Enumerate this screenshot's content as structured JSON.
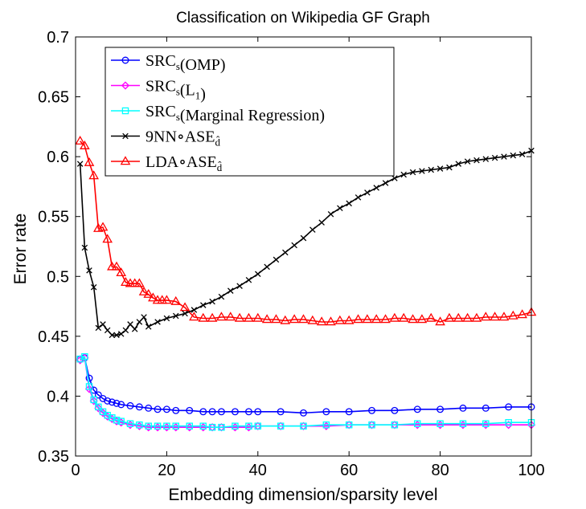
{
  "chart_data": {
    "type": "line",
    "title": "Classification on Wikipedia GF Graph",
    "xlabel": "Embedding dimension/sparsity level",
    "ylabel": "Error rate",
    "xlim": [
      0,
      100
    ],
    "ylim": [
      0.35,
      0.7
    ],
    "xticks": [
      0,
      20,
      40,
      60,
      80,
      100
    ],
    "xtick_labels": [
      "0",
      "20",
      "40",
      "60",
      "80",
      "100"
    ],
    "yticks": [
      0.35,
      0.4,
      0.45,
      0.5,
      0.55,
      0.6,
      0.65,
      0.7
    ],
    "ytick_labels": [
      "0.35",
      "0.4",
      "0.45",
      "0.5",
      "0.55",
      "0.6",
      "0.65",
      "0.7"
    ],
    "grid": false,
    "legend_position": "top-left",
    "series": [
      {
        "name": "SRCs(OMP)",
        "legend_main": "SRC",
        "legend_sub": "s",
        "legend_rest": "(OMP)",
        "color": "#0000ff",
        "marker": "circle",
        "x": [
          1,
          2,
          3,
          4,
          5,
          6,
          7,
          8,
          9,
          10,
          12,
          14,
          16,
          18,
          20,
          22,
          25,
          28,
          30,
          32,
          35,
          38,
          40,
          45,
          50,
          55,
          60,
          65,
          70,
          75,
          80,
          85,
          90,
          95,
          100
        ],
        "y": [
          0.431,
          0.432,
          0.415,
          0.405,
          0.401,
          0.398,
          0.396,
          0.395,
          0.394,
          0.393,
          0.392,
          0.391,
          0.39,
          0.389,
          0.389,
          0.388,
          0.388,
          0.387,
          0.387,
          0.387,
          0.387,
          0.387,
          0.387,
          0.387,
          0.386,
          0.387,
          0.387,
          0.388,
          0.388,
          0.389,
          0.389,
          0.39,
          0.39,
          0.391,
          0.391
        ]
      },
      {
        "name": "SRCs(L1)",
        "legend_main": "SRC",
        "legend_sub": "s",
        "legend_rest": "(L",
        "legend_sub2": "1",
        "legend_end": ")",
        "color": "#ff00ff",
        "marker": "diamond",
        "x": [
          1,
          2,
          3,
          4,
          5,
          6,
          7,
          8,
          9,
          10,
          12,
          14,
          16,
          18,
          20,
          22,
          25,
          28,
          30,
          32,
          35,
          38,
          40,
          45,
          50,
          55,
          60,
          65,
          70,
          75,
          80,
          85,
          90,
          95,
          100
        ],
        "y": [
          0.43,
          0.432,
          0.406,
          0.396,
          0.39,
          0.386,
          0.383,
          0.381,
          0.379,
          0.378,
          0.376,
          0.375,
          0.374,
          0.374,
          0.374,
          0.374,
          0.374,
          0.374,
          0.374,
          0.374,
          0.374,
          0.374,
          0.375,
          0.375,
          0.375,
          0.375,
          0.376,
          0.376,
          0.376,
          0.376,
          0.376,
          0.376,
          0.376,
          0.376,
          0.376
        ]
      },
      {
        "name": "SRCs(Marginal Regression)",
        "legend_main": "SRC",
        "legend_sub": "s",
        "legend_rest": "(Marginal Regression)",
        "color": "#00ffff",
        "marker": "square",
        "x": [
          1,
          2,
          3,
          4,
          5,
          6,
          7,
          8,
          9,
          10,
          12,
          14,
          16,
          18,
          20,
          22,
          25,
          28,
          30,
          32,
          35,
          38,
          40,
          45,
          50,
          55,
          60,
          65,
          70,
          75,
          80,
          85,
          90,
          95,
          100
        ],
        "y": [
          0.431,
          0.433,
          0.408,
          0.397,
          0.391,
          0.387,
          0.384,
          0.382,
          0.38,
          0.379,
          0.377,
          0.376,
          0.375,
          0.375,
          0.375,
          0.375,
          0.375,
          0.375,
          0.374,
          0.374,
          0.375,
          0.375,
          0.375,
          0.375,
          0.375,
          0.376,
          0.376,
          0.376,
          0.376,
          0.377,
          0.377,
          0.377,
          0.377,
          0.378,
          0.378
        ]
      },
      {
        "name": "9NN∘ASE",
        "legend_main": "9NN∘ASE",
        "legend_sub": "d̂",
        "color": "#000000",
        "marker": "x",
        "x": [
          1,
          2,
          3,
          4,
          5,
          6,
          7,
          8,
          9,
          10,
          11,
          12,
          13,
          14,
          15,
          16,
          18,
          20,
          22,
          24,
          26,
          28,
          30,
          32,
          34,
          36,
          38,
          40,
          42,
          44,
          46,
          48,
          50,
          52,
          54,
          56,
          58,
          60,
          62,
          64,
          66,
          68,
          70,
          72,
          74,
          76,
          78,
          80,
          82,
          84,
          86,
          88,
          90,
          92,
          94,
          96,
          98,
          100
        ],
        "y": [
          0.594,
          0.524,
          0.505,
          0.491,
          0.457,
          0.46,
          0.455,
          0.451,
          0.451,
          0.452,
          0.455,
          0.46,
          0.456,
          0.462,
          0.466,
          0.458,
          0.462,
          0.465,
          0.467,
          0.469,
          0.472,
          0.476,
          0.479,
          0.483,
          0.488,
          0.492,
          0.497,
          0.502,
          0.508,
          0.514,
          0.52,
          0.526,
          0.532,
          0.539,
          0.545,
          0.552,
          0.557,
          0.561,
          0.566,
          0.57,
          0.574,
          0.578,
          0.582,
          0.585,
          0.587,
          0.588,
          0.589,
          0.59,
          0.591,
          0.594,
          0.596,
          0.597,
          0.598,
          0.599,
          0.6,
          0.601,
          0.602,
          0.605
        ]
      },
      {
        "name": "LDA∘ASE",
        "legend_main": "LDA∘ASE",
        "legend_sub": "d̂",
        "color": "#ff0000",
        "marker": "triangle",
        "x": [
          1,
          2,
          3,
          4,
          5,
          6,
          7,
          8,
          9,
          10,
          11,
          12,
          13,
          14,
          15,
          16,
          17,
          18,
          19,
          20,
          22,
          24,
          26,
          28,
          30,
          32,
          34,
          36,
          38,
          40,
          42,
          44,
          46,
          48,
          50,
          52,
          54,
          56,
          58,
          60,
          62,
          64,
          66,
          68,
          70,
          72,
          74,
          76,
          78,
          80,
          82,
          84,
          86,
          88,
          90,
          92,
          94,
          96,
          98,
          100
        ],
        "y": [
          0.613,
          0.609,
          0.595,
          0.584,
          0.54,
          0.541,
          0.531,
          0.508,
          0.508,
          0.503,
          0.495,
          0.494,
          0.494,
          0.494,
          0.487,
          0.485,
          0.482,
          0.48,
          0.48,
          0.48,
          0.479,
          0.474,
          0.466,
          0.465,
          0.465,
          0.466,
          0.466,
          0.465,
          0.465,
          0.465,
          0.464,
          0.464,
          0.463,
          0.464,
          0.464,
          0.463,
          0.462,
          0.462,
          0.463,
          0.463,
          0.464,
          0.464,
          0.464,
          0.464,
          0.465,
          0.465,
          0.464,
          0.464,
          0.465,
          0.462,
          0.465,
          0.465,
          0.465,
          0.465,
          0.466,
          0.466,
          0.466,
          0.467,
          0.468,
          0.47
        ]
      }
    ]
  }
}
